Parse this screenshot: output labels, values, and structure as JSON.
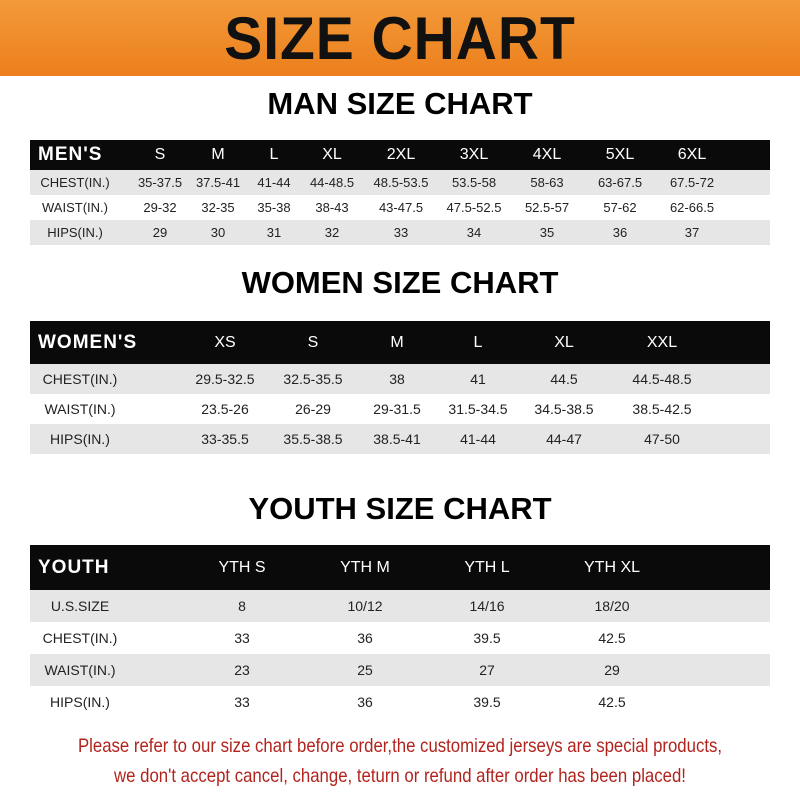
{
  "title": "SIZE CHART",
  "colors": {
    "banner": "#ee861f",
    "header": "#0a0a0a",
    "stripe": "#e6e6e6",
    "notice": "#b3231d"
  },
  "men": {
    "title": "MAN SIZE CHART",
    "header": [
      "MEN'S",
      "S",
      "M",
      "L",
      "XL",
      "2XL",
      "3XL",
      "4XL",
      "5XL",
      "6XL"
    ],
    "rows": [
      [
        "CHEST(IN.)",
        "35-37.5",
        "37.5-41",
        "41-44",
        "44-48.5",
        "48.5-53.5",
        "53.5-58",
        "58-63",
        "63-67.5",
        "67.5-72"
      ],
      [
        "WAIST(IN.)",
        "29-32",
        "32-35",
        "35-38",
        "38-43",
        "43-47.5",
        "47.5-52.5",
        "52.5-57",
        "57-62",
        "62-66.5"
      ],
      [
        "HIPS(IN.)",
        "29",
        "30",
        "31",
        "32",
        "33",
        "34",
        "35",
        "36",
        "37"
      ]
    ]
  },
  "women": {
    "title": "WOMEN SIZE CHART",
    "header": [
      "WOMEN'S",
      "XS",
      "S",
      "M",
      "L",
      "XL",
      "XXL"
    ],
    "rows": [
      [
        "CHEST(IN.)",
        "29.5-32.5",
        "32.5-35.5",
        "38",
        "41",
        "44.5",
        "44.5-48.5"
      ],
      [
        "WAIST(IN.)",
        "23.5-26",
        "26-29",
        "29-31.5",
        "31.5-34.5",
        "34.5-38.5",
        "38.5-42.5"
      ],
      [
        "HIPS(IN.)",
        "33-35.5",
        "35.5-38.5",
        "38.5-41",
        "41-44",
        "44-47",
        "47-50"
      ]
    ]
  },
  "youth": {
    "title": "YOUTH SIZE CHART",
    "header": [
      "YOUTH",
      "YTH S",
      "YTH M",
      "YTH L",
      "YTH XL"
    ],
    "rows": [
      [
        "U.S.SIZE",
        "8",
        "10/12",
        "14/16",
        "18/20"
      ],
      [
        "CHEST(IN.)",
        "33",
        "36",
        "39.5",
        "42.5"
      ],
      [
        "WAIST(IN.)",
        "23",
        "25",
        "27",
        "29"
      ],
      [
        "HIPS(IN.)",
        "33",
        "36",
        "39.5",
        "42.5"
      ]
    ]
  },
  "notice": {
    "line1": "Please refer to our size chart before order,the customized jerseys are special products,",
    "line2": "we don't accept cancel, change, teturn or refund after order has been placed!"
  }
}
